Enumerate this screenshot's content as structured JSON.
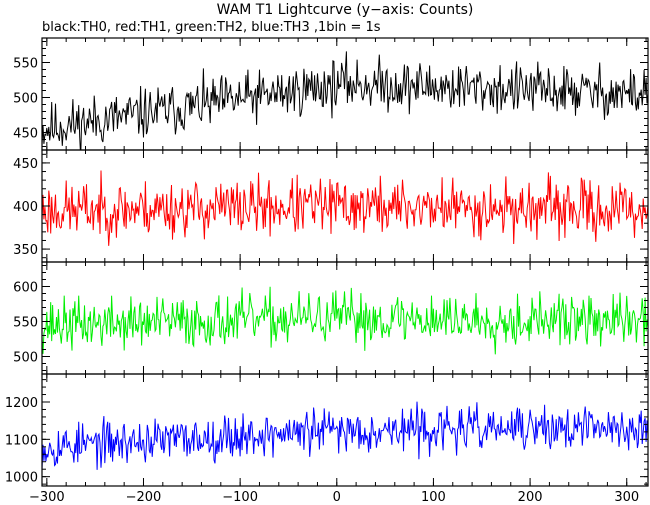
{
  "title": "WAM T1 Lightcurve (y−axis: Counts)",
  "subtitle": "black:TH0, red:TH1, green:TH2, blue:TH3 ,1bin = 1s",
  "chart_data": {
    "type": "line",
    "x": {
      "min": -305,
      "max": 322,
      "ticks": [
        -300,
        -200,
        -100,
        0,
        100,
        200,
        300
      ]
    },
    "panels": [
      {
        "name": "TH0",
        "color": "#000000",
        "ylim": [
          425,
          585
        ],
        "yticks": [
          450,
          500,
          550
        ],
        "baseline": [
          455,
          520,
          505
        ],
        "noise": 28,
        "seed": 11
      },
      {
        "name": "TH1",
        "color": "#ff0000",
        "ylim": [
          335,
          465
        ],
        "yticks": [
          350,
          400,
          450
        ],
        "baseline": [
          395,
          400,
          395
        ],
        "noise": 25,
        "seed": 23
      },
      {
        "name": "TH2",
        "color": "#00ee00",
        "ylim": [
          475,
          635
        ],
        "yticks": [
          500,
          550,
          600
        ],
        "baseline": [
          545,
          555,
          550
        ],
        "noise": 28,
        "seed": 37
      },
      {
        "name": "TH3",
        "color": "#0000ff",
        "ylim": [
          975,
          1275
        ],
        "yticks": [
          1000,
          1100,
          1200
        ],
        "baseline": [
          1080,
          1125,
          1130
        ],
        "noise": 45,
        "seed": 53
      }
    ]
  }
}
